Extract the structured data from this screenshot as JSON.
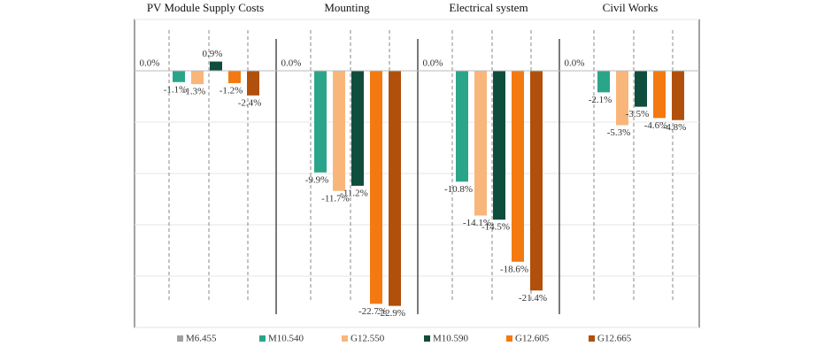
{
  "chart_data": {
    "type": "bar",
    "categories": [
      "PV Module Supply Costs",
      "Mounting",
      "Electrical system",
      "Civil Works"
    ],
    "series": [
      {
        "name": "M6.455",
        "color": "#a0a0a0",
        "values": [
          0,
          0,
          0,
          0
        ],
        "value_labels": [
          "0.0%",
          "0.0%",
          "0.0%",
          "0.0%"
        ]
      },
      {
        "name": "M10.540",
        "color": "#2ba58a",
        "values": [
          -1.1,
          -9.9,
          -10.8,
          -2.1
        ],
        "value_labels": [
          "-1.1%",
          "-9.9%",
          "-10.8%",
          "-2.1%"
        ]
      },
      {
        "name": "G12.550",
        "color": "#f9b67a",
        "values": [
          -1.3,
          -11.7,
          -14.1,
          -5.3
        ],
        "value_labels": [
          "-1.3%",
          "-11.7%",
          "-14.1%",
          "-5.3%"
        ]
      },
      {
        "name": "M10.590",
        "color": "#0f4d3d",
        "values": [
          0.9,
          -11.2,
          -14.5,
          -3.5
        ],
        "value_labels": [
          "0.9%",
          "-11.2%",
          "-14.5%",
          "-3.5%"
        ]
      },
      {
        "name": "G12.605",
        "color": "#f37a10",
        "values": [
          -1.2,
          -22.7,
          -18.6,
          -4.6
        ],
        "value_labels": [
          "-1.2%",
          "-22.7%",
          "-18.6%",
          "-4.6%"
        ]
      },
      {
        "name": "G12.665",
        "color": "#b0500c",
        "values": [
          -2.4,
          -22.9,
          -21.4,
          -4.8
        ],
        "value_labels": [
          "-2.4%",
          "-22.9%",
          "-21.4%",
          "-4.8%"
        ]
      }
    ],
    "ylim": [
      -25,
      5
    ],
    "yticks": [
      5,
      0,
      -5,
      -10,
      -15,
      -20,
      -25
    ],
    "grid": true
  }
}
